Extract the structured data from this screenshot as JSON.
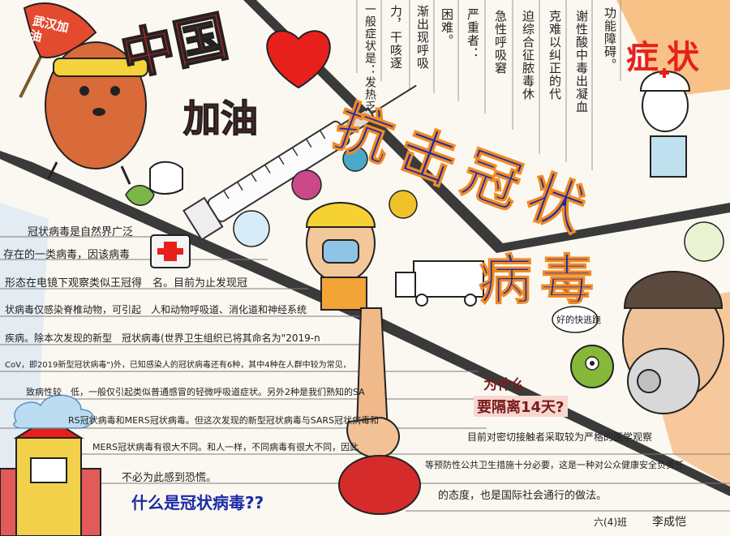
{
  "flag_text": "武汉加油",
  "slogan": {
    "china": "中国",
    "jiayou": "加油"
  },
  "main_title": {
    "line1": "抗击冠状",
    "line2": "病毒"
  },
  "symptoms_heading": "症状",
  "symptom_columns": [
    "功能障碍。",
    "谢性酸中毒出凝血",
    "克难以纠正的代",
    "迫综合征脓毒休",
    "急性呼吸窘",
    "严重者：",
    "困难。",
    "渐出现呼吸",
    "力，干咳逐",
    "一般症状是：发热乏"
  ],
  "speech_bubble": "好的快逃跑",
  "paragraph_lines": [
    "冠状病毒是自然界广泛",
    "存在的一类病毒，因该病毒",
    "形态在电镜下观察类似王冠得　名。目前为止发现冠",
    "状病毒仅感染脊椎动物，可引起　人和动物呼吸道、消化道和神经系统",
    "疾病。除本次发现的新型　冠状病毒(世界卫生组织已将其命名为\"2019-n",
    "CoV，即2019新型冠状病毒\")外，已知感染人的冠状病毒还有6种，其中4种在人群中较为常见，",
    "致病性较　低，一般仅引起类似普通感冒的轻微呼吸道症状。另外2种是我们熟知的SA",
    "RS冠状病毒和MERS冠状病毒。但这次发现的新型冠状病毒与SARS冠状病毒和",
    "MERS冠状病毒有很大不同。和人一样，不同病毒有很大不同，因此",
    "不必为此感到恐慌。"
  ],
  "question_footer": "什么是冠状病毒??",
  "question_why": {
    "line1": "为什么",
    "line2": "要隔离14天?"
  },
  "answer_lines": [
    "目前对密切接触者采取较为严格的医学观察",
    "等预防性公共卫生措施十分必要，这是一种对公众健康安全负责任",
    "的态度，也是国际社会通行的做法。"
  ],
  "signature": {
    "class": "六(4)班",
    "name": "李成恺"
  },
  "colors": {
    "title_blue": "#1b2aa8",
    "slogan_red": "#e8201c",
    "accent_orange": "#f08a24",
    "paper": "#fbf8f1"
  }
}
